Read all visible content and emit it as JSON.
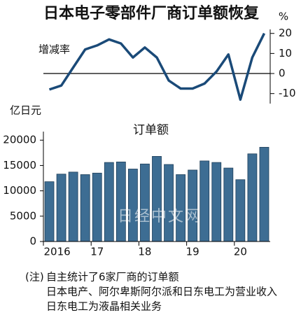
{
  "chart_data": [
    {
      "type": "line",
      "title": "日本电子零部件厂商订单额恢复",
      "label": "增减率",
      "unit": "%",
      "axis": "y2",
      "color": "#1a4a78",
      "values": [
        -8,
        -6,
        3,
        12,
        14,
        17,
        15,
        8,
        13,
        8,
        -3.5,
        -7.5,
        -7.5,
        -5,
        1,
        9.5,
        -13,
        8,
        20
      ],
      "y2lim": [
        -15,
        22
      ],
      "y2ticks": [
        -10,
        0,
        10,
        20
      ]
    },
    {
      "type": "bar",
      "label": "订单额",
      "unit": "亿日元",
      "color": "#3d6d93",
      "categories": [
        "2016",
        null,
        null,
        null,
        "17",
        null,
        null,
        null,
        "18",
        null,
        null,
        null,
        "19",
        null,
        null,
        null,
        "20",
        null,
        null
      ],
      "values": [
        11800,
        13300,
        13700,
        13200,
        13500,
        15600,
        15700,
        14300,
        15300,
        16800,
        15200,
        13200,
        14100,
        15900,
        15600,
        14500,
        12200,
        17300,
        18600
      ],
      "ylim": [
        0,
        21000
      ],
      "yticks": [
        0,
        5000,
        10000,
        15000,
        20000
      ]
    }
  ],
  "watermark": "日经中文网",
  "note_label": "(注)",
  "notes": [
    "自主统计了6家厂商的订单额",
    "日本电产、阿尔卑斯阿尔派和日东电工为营业收入",
    "日东电工为液晶相关业务"
  ]
}
